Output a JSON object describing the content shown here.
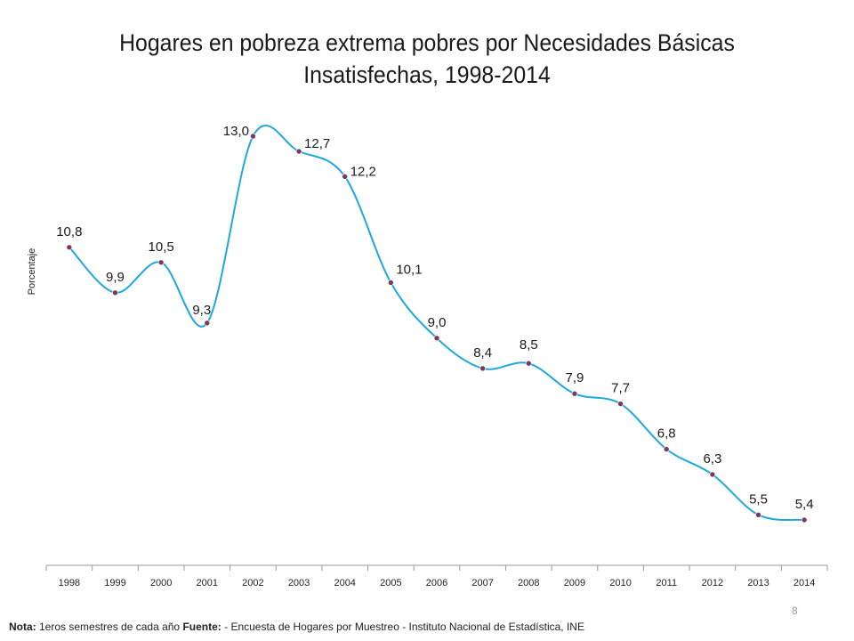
{
  "page": {
    "number": "8"
  },
  "footnote": {
    "nota_label": "Nota:",
    "nota_text": " 1eros semestres de cada año ",
    "fuente_label": "Fuente:",
    "fuente_text": " - Encuesta de Hogares por Muestreo  - Instituto Nacional de Estadística, INE"
  },
  "chart_data": {
    "type": "line",
    "title_line1": "Hogares en pobreza extrema pobres por Necesidades Básicas",
    "title_line2": "Insatisfechas, 1998-2014",
    "ylabel": "Porcentaje",
    "xlabel": "",
    "categories": [
      "1998",
      "1999",
      "2000",
      "2001",
      "2002",
      "2003",
      "2004",
      "2005",
      "2006",
      "2007",
      "2008",
      "2009",
      "2010",
      "2011",
      "2012",
      "2013",
      "2014"
    ],
    "values": [
      10.8,
      9.9,
      10.5,
      9.3,
      13.0,
      12.7,
      12.2,
      10.1,
      9.0,
      8.4,
      8.5,
      7.9,
      7.7,
      6.8,
      6.3,
      5.5,
      5.4
    ],
    "data_labels": [
      "10,8",
      "9,9",
      "10,5",
      "9,3",
      "13,0",
      "12,7",
      "12,2",
      "10,1",
      "9,0",
      "8,4",
      "8,5",
      "7,9",
      "7,7",
      "6,8",
      "6,3",
      "5,5",
      "5,4"
    ],
    "smoothed": true,
    "line_color": "#1fa8e0",
    "marker_color": "#7b3a5a",
    "axis_color": "#9a9a9a",
    "grid": false,
    "legend": "none"
  }
}
